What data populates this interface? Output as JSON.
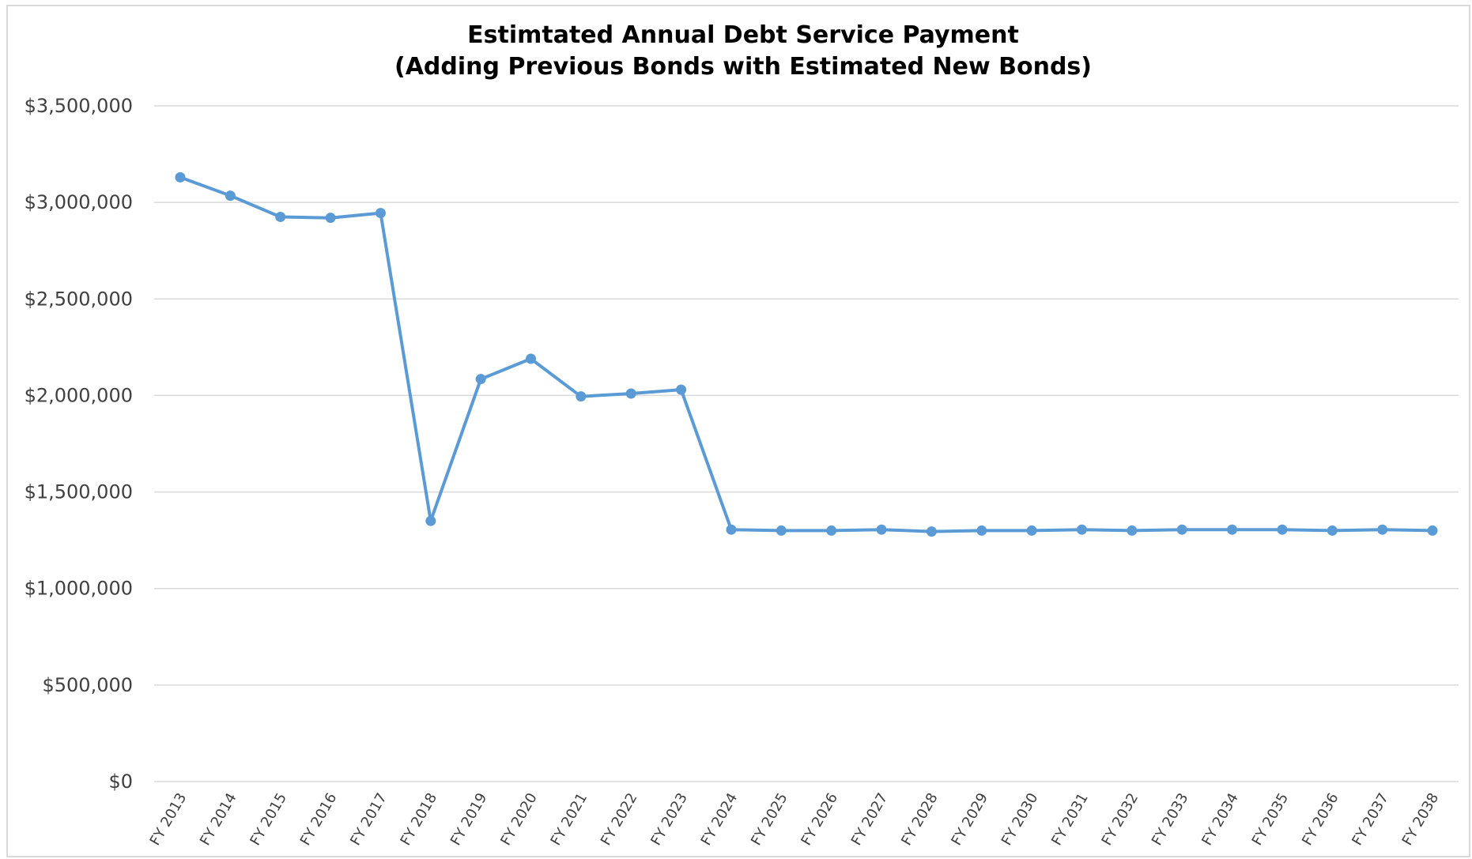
{
  "chart_data": {
    "type": "line",
    "title": "Estimtated Annual Debt Service Payment",
    "subtitle": "(Adding Previous Bonds with Estimated New Bonds)",
    "xlabel": "",
    "ylabel": "",
    "ylim": [
      0,
      3500000
    ],
    "yticks": [
      0,
      500000,
      1000000,
      1500000,
      2000000,
      2500000,
      3000000,
      3500000
    ],
    "ytick_labels": [
      "$0",
      "$500,000",
      "$1,000,000",
      "$1,500,000",
      "$2,000,000",
      "$2,500,000",
      "$3,000,000",
      "$3,500,000"
    ],
    "grid": true,
    "legend": "none",
    "line_color": "#5b9bd5",
    "grid_color": "#d9d9d9",
    "categories": [
      "FY 2013",
      "FY 2014",
      "FY 2015",
      "FY 2016",
      "FY 2017",
      "FY 2018",
      "FY 2019",
      "FY 2020",
      "FY 2021",
      "FY 2022",
      "FY 2023",
      "FY 2024",
      "FY 2025",
      "FY 2026",
      "FY 2027",
      "FY 2028",
      "FY 2029",
      "FY 2030",
      "FY 2031",
      "FY 2032",
      "FY 2033",
      "FY 2034",
      "FY 2035",
      "FY 2036",
      "FY 2037",
      "FY 2038"
    ],
    "series": [
      {
        "values": [
          3130000,
          3035000,
          2925000,
          2920000,
          2945000,
          1350000,
          2085000,
          2190000,
          1995000,
          2010000,
          2030000,
          1305000,
          1300000,
          1300000,
          1305000,
          1295000,
          1300000,
          1300000,
          1305000,
          1300000,
          1305000,
          1305000,
          1305000,
          1300000,
          1305000,
          1300000
        ]
      }
    ]
  }
}
